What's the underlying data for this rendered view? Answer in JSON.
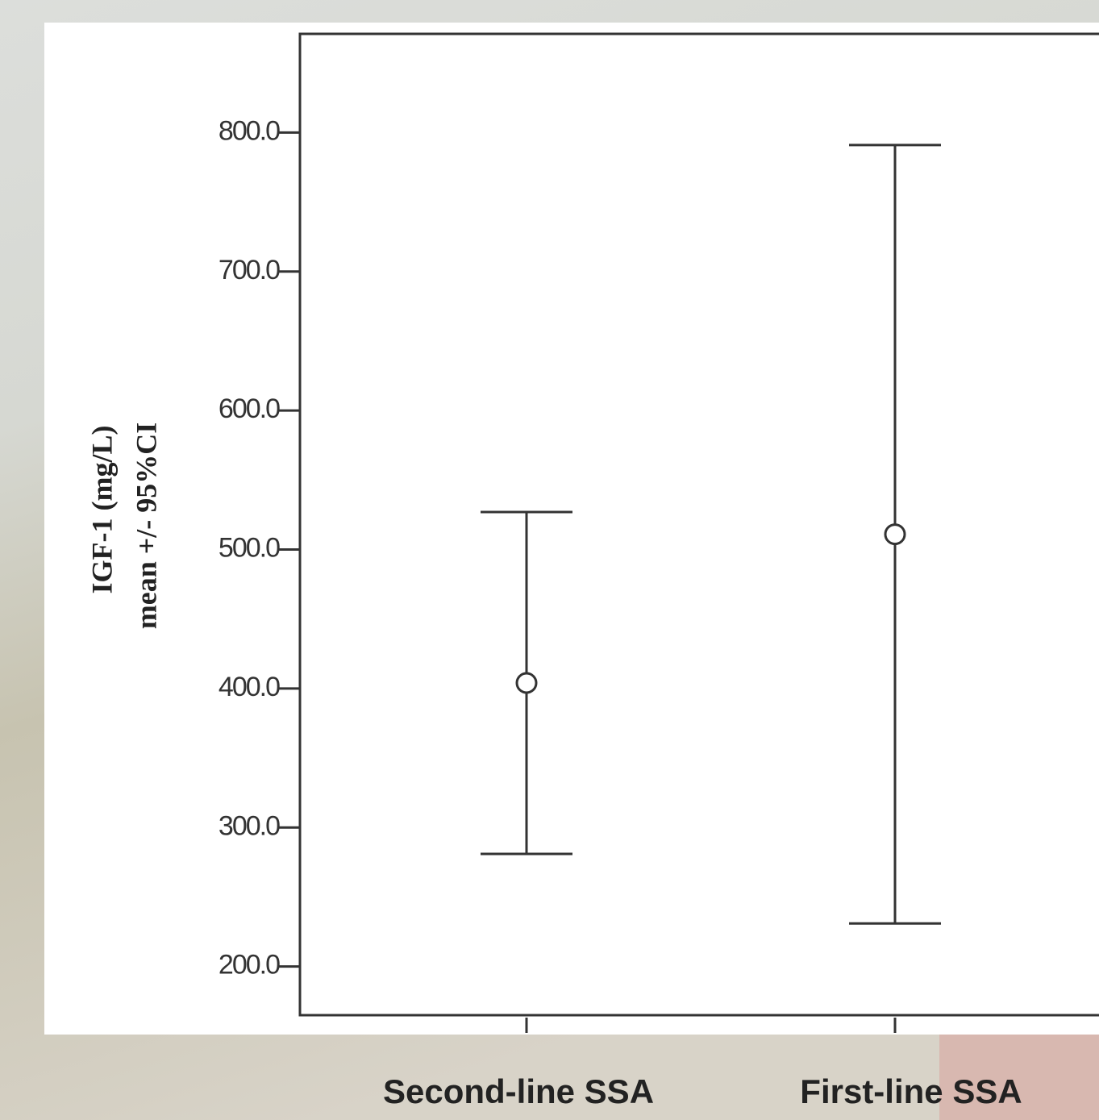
{
  "chart_data": {
    "type": "errorbar",
    "ylabel": [
      "IGF-1 (mg/L)",
      "mean +/- 95%CI"
    ],
    "categories": [
      "Second-line SSA",
      "First-line SSA"
    ],
    "values": [
      404,
      511
    ],
    "lower": [
      281,
      231
    ],
    "upper": [
      527,
      791
    ],
    "color": "#333333",
    "ylim": [
      165,
      871
    ],
    "yticks": [
      {
        "value": 200,
        "label": "200.0"
      },
      {
        "value": 300,
        "label": "300.0"
      },
      {
        "value": 400,
        "label": "400.0"
      },
      {
        "value": 500,
        "label": "500.0"
      },
      {
        "value": 600,
        "label": "600.0"
      },
      {
        "value": 700,
        "label": "700.0"
      },
      {
        "value": 800,
        "label": "800.0"
      }
    ],
    "grid": false
  }
}
